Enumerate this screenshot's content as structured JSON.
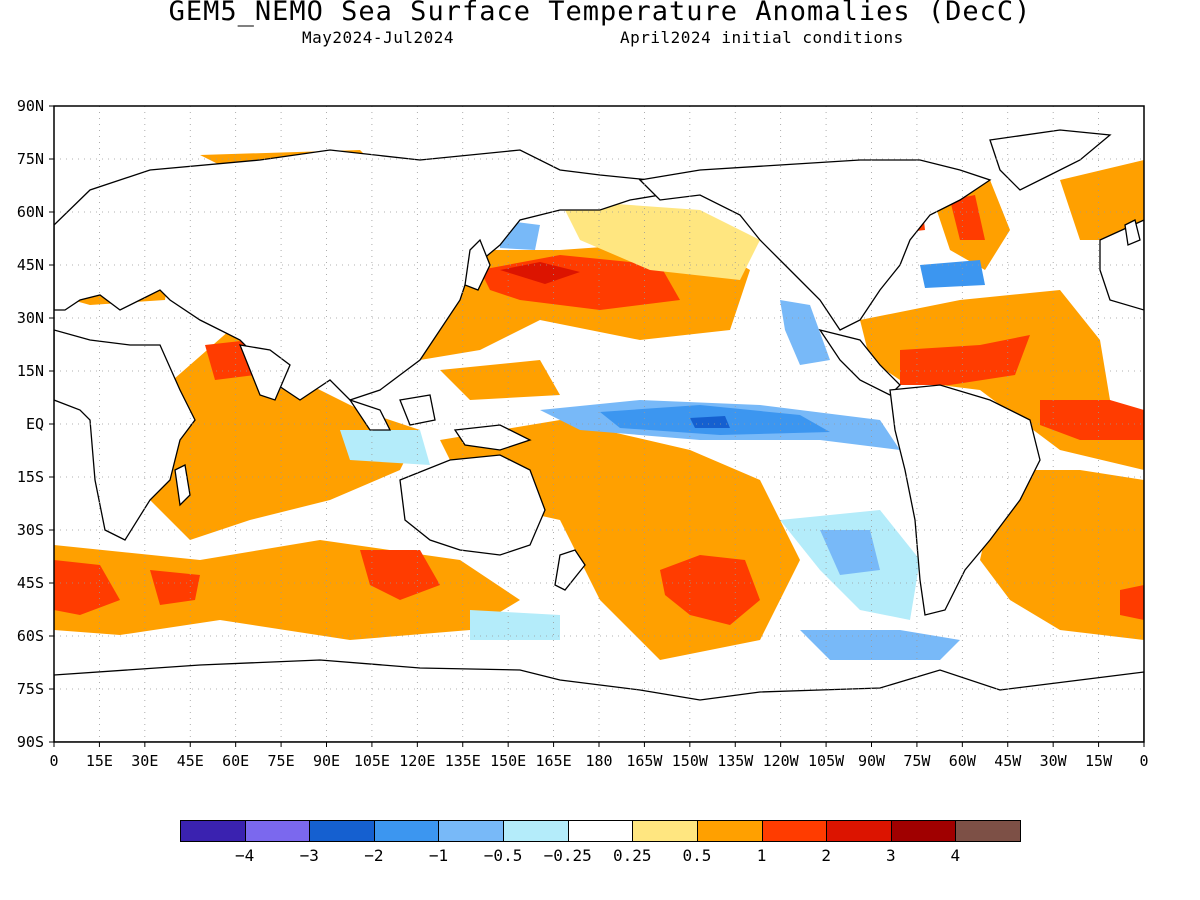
{
  "title": "GEM5_NEMO Sea Surface Temperature Anomalies (DecC)",
  "subtitle_left": "May2024-Jul2024",
  "subtitle_right": "April2024 initial conditions",
  "y_ticks": [
    "90N",
    "75N",
    "60N",
    "45N",
    "30N",
    "15N",
    "EQ",
    "15S",
    "30S",
    "45S",
    "60S",
    "75S",
    "90S"
  ],
  "x_ticks": [
    "0",
    "15E",
    "30E",
    "45E",
    "60E",
    "75E",
    "90E",
    "105E",
    "120E",
    "135E",
    "150E",
    "165E",
    "180",
    "165W",
    "150W",
    "135W",
    "120W",
    "105W",
    "90W",
    "75W",
    "60W",
    "45W",
    "30W",
    "15W",
    "0"
  ],
  "colorbar": {
    "colors": [
      "#3a22b0",
      "#7b68ee",
      "#1560d0",
      "#3c96f0",
      "#78b9f8",
      "#b4ecfa",
      "#ffffff",
      "#ffe680",
      "#ffa000",
      "#ff3c00",
      "#dc1400",
      "#a00000",
      "#7d5046"
    ],
    "labels": [
      "-4",
      "-3",
      "-2",
      "-1",
      "-0.5",
      "-0.25",
      "0.25",
      "0.5",
      "1",
      "2",
      "3",
      "4"
    ]
  }
}
